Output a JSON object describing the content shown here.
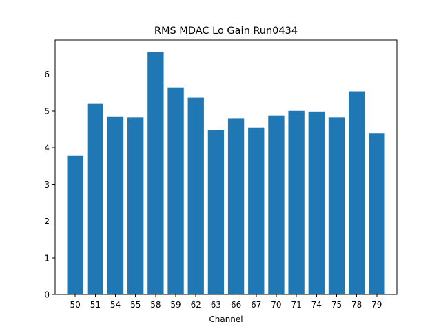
{
  "chart_data": {
    "type": "bar",
    "title": "RMS MDAC Lo Gain Run0434",
    "xlabel": "Channel",
    "ylabel": "",
    "categories": [
      "50",
      "51",
      "54",
      "55",
      "58",
      "59",
      "62",
      "63",
      "66",
      "67",
      "70",
      "71",
      "74",
      "75",
      "78",
      "79"
    ],
    "values": [
      3.78,
      5.19,
      4.85,
      4.82,
      6.6,
      5.64,
      5.36,
      4.47,
      4.8,
      4.55,
      4.87,
      5.0,
      4.98,
      4.82,
      5.53,
      4.39
    ],
    "ylim": [
      0,
      6.93
    ],
    "yticks": [
      0,
      1,
      2,
      3,
      4,
      5,
      6
    ],
    "grid": false,
    "bar_color": "#1f77b4"
  }
}
